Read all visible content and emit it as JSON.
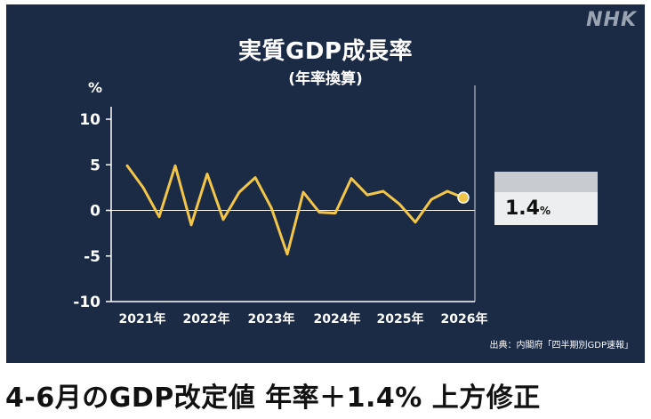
{
  "brand": "NHK",
  "headline": "4-6月のGDP改定値 年率＋1.4% 上方修正",
  "source": "出典：内閣府「四半期別GDP速報」",
  "colors": {
    "background": "#1b2a45",
    "line": "#f3c64a",
    "text": "#ffffff",
    "callout_bg": "#eceeef"
  },
  "callout": {
    "value": "1.4",
    "unit": "%"
  },
  "chart_data": {
    "type": "line",
    "title": "実質GDP成長率",
    "subtitle": "(年率換算)",
    "y_unit": "%",
    "ylim": [
      -10,
      12
    ],
    "yticks": [
      10,
      5,
      0,
      -5,
      -10
    ],
    "ytick_labels": [
      "10",
      "5",
      "0",
      "-5",
      "-10"
    ],
    "xticks": [
      "2021年",
      "2022年",
      "2023年",
      "2024年",
      "2025年",
      "2026年"
    ],
    "xlim": [
      0,
      23
    ],
    "grid": false,
    "series": [
      {
        "values": [
          {
            "q": 1,
            "y": 4.9
          },
          {
            "q": 2,
            "y": 2.5
          },
          {
            "q": 3,
            "y": -0.7
          },
          {
            "q": 4,
            "y": 4.9
          },
          {
            "q": 5,
            "y": -1.6
          },
          {
            "q": 6,
            "y": 4.0
          },
          {
            "q": 7,
            "y": -1.0
          },
          {
            "q": 8,
            "y": 2.0
          },
          {
            "q": 9,
            "y": 3.6
          },
          {
            "q": 10,
            "y": 0.3
          },
          {
            "q": 11,
            "y": -4.8
          },
          {
            "q": 12,
            "y": 2.0
          },
          {
            "q": 13,
            "y": -0.2
          },
          {
            "q": 14,
            "y": -0.3
          },
          {
            "q": 15,
            "y": 3.5
          },
          {
            "q": 16,
            "y": 1.7
          },
          {
            "q": 17,
            "y": 2.1
          },
          {
            "q": 18,
            "y": 0.7
          },
          {
            "q": 19,
            "y": -1.3
          },
          {
            "q": 20,
            "y": 1.2
          },
          {
            "q": 21,
            "y": 2.1
          },
          {
            "q": 22,
            "y": 1.4
          }
        ]
      }
    ]
  }
}
